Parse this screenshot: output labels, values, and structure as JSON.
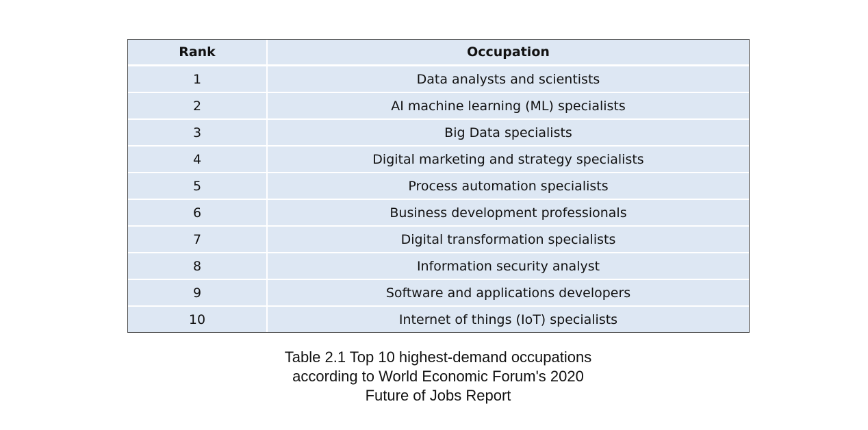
{
  "table": {
    "headers": {
      "rank": "Rank",
      "occupation": "Occupation"
    },
    "rows": [
      {
        "rank": "1",
        "occupation": "Data analysts and scientists"
      },
      {
        "rank": "2",
        "occupation": "AI machine learning (ML) specialists"
      },
      {
        "rank": "3",
        "occupation": "Big Data specialists"
      },
      {
        "rank": "4",
        "occupation": "Digital marketing and strategy specialists"
      },
      {
        "rank": "5",
        "occupation": "Process automation specialists"
      },
      {
        "rank": "6",
        "occupation": "Business development professionals"
      },
      {
        "rank": "7",
        "occupation": "Digital transformation specialists"
      },
      {
        "rank": "8",
        "occupation": "Information security analyst"
      },
      {
        "rank": "9",
        "occupation": "Software and applications developers"
      },
      {
        "rank": "10",
        "occupation": "Internet of things (IoT) specialists"
      }
    ]
  },
  "caption": {
    "line1": "Table 2.1 Top 10 highest-demand occupations",
    "line2": "according to World Economic Forum's 2020",
    "line3": "Future of Jobs Report"
  }
}
